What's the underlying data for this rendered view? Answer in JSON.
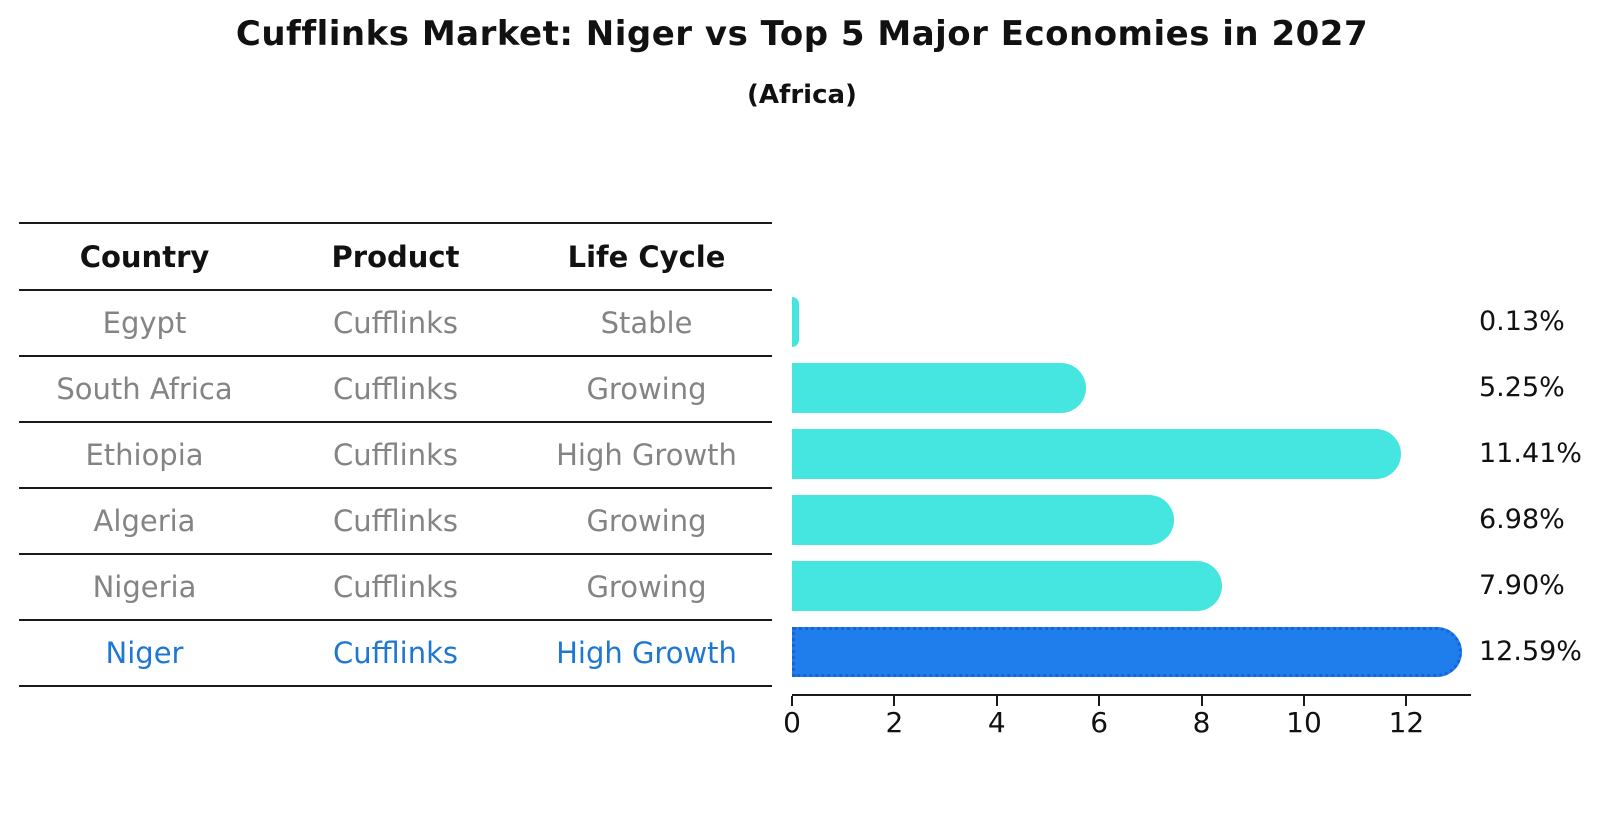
{
  "title": "Cufflinks Market: Niger vs Top 5 Major Economies in 2027",
  "subtitle": "(Africa)",
  "table": {
    "columns": [
      "Country",
      "Product",
      "Life Cycle"
    ],
    "rows": [
      {
        "country": "Egypt",
        "product": "Cufflinks",
        "life_cycle": "Stable",
        "highlight": false
      },
      {
        "country": "South Africa",
        "product": "Cufflinks",
        "life_cycle": "Growing",
        "highlight": false
      },
      {
        "country": "Ethiopia",
        "product": "Cufflinks",
        "life_cycle": "High Growth",
        "highlight": false
      },
      {
        "country": "Algeria",
        "product": "Cufflinks",
        "life_cycle": "Growing",
        "highlight": false
      },
      {
        "country": "Nigeria",
        "product": "Cufflinks",
        "life_cycle": "Growing",
        "highlight": false
      },
      {
        "country": "Niger",
        "product": "Cufflinks",
        "life_cycle": "High Growth",
        "highlight": true
      }
    ]
  },
  "chart_data": {
    "type": "bar",
    "orientation": "horizontal",
    "title": "Cufflinks Market: Niger vs Top 5 Major Economies in 2027 (Africa)",
    "categories": [
      "Egypt",
      "South Africa",
      "Ethiopia",
      "Algeria",
      "Nigeria",
      "Niger"
    ],
    "values": [
      0.13,
      5.25,
      11.41,
      6.98,
      7.9,
      12.59
    ],
    "value_labels": [
      "0.13%",
      "5.25%",
      "11.41%",
      "6.98%",
      "7.90%",
      "12.59%"
    ],
    "x_ticks": [
      "0",
      "2",
      "4",
      "6",
      "8",
      "10",
      "12"
    ],
    "x_tick_values": [
      0,
      2,
      4,
      6,
      8,
      10,
      12
    ],
    "xlim": [
      0,
      13.2
    ],
    "grid": false,
    "legend": "none",
    "bar_color": "#45E6E0",
    "highlight_color": "#1F7DEC",
    "highlight_index": 5,
    "highlight_text_color": "#1E78D2"
  }
}
